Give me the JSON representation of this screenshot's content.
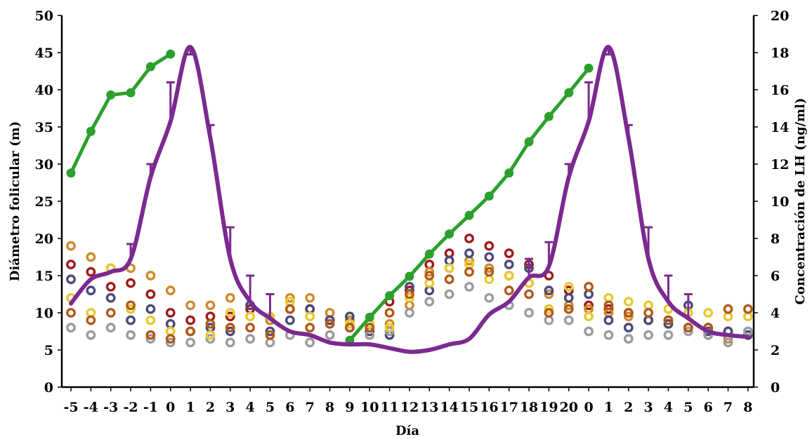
{
  "chart_data": {
    "type": "line",
    "title": "",
    "xlabel": "Día",
    "ylabel": "Diámetro folicular (m)",
    "y2label": "Concentración de LH (ng/ml)",
    "ylim": [
      0,
      50
    ],
    "y2lim": [
      0,
      20
    ],
    "yticks": [
      "0",
      "5",
      "10",
      "15",
      "20",
      "25",
      "30",
      "35",
      "40",
      "45",
      "50"
    ],
    "y2ticks": [
      "0",
      "2",
      "4",
      "6",
      "8",
      "10",
      "12",
      "14",
      "16",
      "18",
      "20"
    ],
    "categories": [
      "-5",
      "-4",
      "-3",
      "-2",
      "-1",
      "0",
      "1",
      "2",
      "3",
      "4",
      "5",
      "6",
      "7",
      "8",
      "9",
      "10",
      "11",
      "12",
      "13",
      "14",
      "15",
      "16",
      "17",
      "18",
      "19",
      "20",
      "0",
      "1",
      "2",
      "3",
      "4",
      "5",
      "6",
      "7",
      "8"
    ],
    "grid": false,
    "legend": "none",
    "colors": {
      "follicle_line": "#2ca02c",
      "lh_line": "#7b2a90",
      "rings": [
        "#a01a1a",
        "#d08a2a",
        "#4a4a7a",
        "#9a9aa0",
        "#e8c830",
        "#b05a1a"
      ]
    },
    "series": [
      {
        "type": "line",
        "axis": "left",
        "color": "#2ca02c",
        "markers": true,
        "segments": [
          [
            [
              0,
              28.8
            ],
            [
              1,
              34.4
            ],
            [
              2,
              39.3
            ],
            [
              3,
              39.6
            ],
            [
              4,
              43.1
            ],
            [
              5,
              44.8
            ]
          ],
          [
            [
              14,
              6.3
            ],
            [
              15,
              9.4
            ],
            [
              16,
              12.3
            ],
            [
              17,
              14.9
            ],
            [
              18,
              17.9
            ],
            [
              19,
              20.6
            ],
            [
              20,
              23.1
            ],
            [
              21,
              25.7
            ],
            [
              22,
              28.8
            ],
            [
              23,
              33.0
            ],
            [
              24,
              36.4
            ],
            [
              25,
              39.6
            ],
            [
              26,
              42.9
            ]
          ]
        ]
      },
      {
        "type": "line",
        "axis": "right",
        "color": "#7b2a90",
        "points": [
          [
            0,
            4.5
          ],
          [
            1,
            5.8
          ],
          [
            2,
            6.2
          ],
          [
            3,
            6.9
          ],
          [
            4,
            11.3
          ],
          [
            5,
            14.3
          ],
          [
            6,
            18.3
          ],
          [
            7,
            13.4
          ],
          [
            8,
            6.9
          ],
          [
            9,
            4.6
          ],
          [
            10,
            3.7
          ],
          [
            11,
            3.0
          ],
          [
            12,
            2.8
          ],
          [
            13,
            2.4
          ],
          [
            14,
            2.3
          ],
          [
            15,
            2.3
          ],
          [
            16,
            2.1
          ],
          [
            17,
            1.9
          ],
          [
            18,
            2.0
          ],
          [
            19,
            2.3
          ],
          [
            20,
            2.6
          ],
          [
            21,
            3.9
          ],
          [
            22,
            4.6
          ],
          [
            23,
            5.9
          ],
          [
            24,
            6.5
          ],
          [
            25,
            11.3
          ],
          [
            26,
            14.3
          ],
          [
            27,
            18.3
          ],
          [
            28,
            13.4
          ],
          [
            29,
            6.9
          ],
          [
            30,
            4.6
          ],
          [
            31,
            3.7
          ],
          [
            32,
            3.0
          ],
          [
            33,
            2.8
          ],
          [
            34,
            2.7
          ]
        ],
        "error_bars": [
          [
            3,
            7.7
          ],
          [
            4,
            12.0
          ],
          [
            5,
            16.4
          ],
          [
            6,
            17.9
          ],
          [
            7,
            14.1
          ],
          [
            8,
            8.6
          ],
          [
            9,
            6.0
          ],
          [
            10,
            5.0
          ],
          [
            23,
            6.9
          ],
          [
            24,
            7.8
          ],
          [
            25,
            12.0
          ],
          [
            26,
            16.4
          ],
          [
            27,
            17.9
          ],
          [
            28,
            14.1
          ],
          [
            29,
            8.6
          ],
          [
            30,
            6.0
          ],
          [
            31,
            5.0
          ]
        ]
      },
      {
        "type": "scatter",
        "axis": "left",
        "marker": "ring",
        "color": "#a01a1a",
        "points": [
          [
            0,
            16.5
          ],
          [
            1,
            15.5
          ],
          [
            2,
            13.5
          ],
          [
            3,
            14.0
          ],
          [
            4,
            12.5
          ],
          [
            5,
            10.0
          ],
          [
            6,
            9.0
          ],
          [
            7,
            9.5
          ],
          [
            8,
            9.5
          ],
          [
            9,
            10.5
          ],
          [
            10,
            9.0
          ],
          [
            11,
            10.5
          ],
          [
            12,
            10.5
          ],
          [
            13,
            9.0
          ],
          [
            14,
            9.0
          ],
          [
            15,
            8.5
          ],
          [
            16,
            11.5
          ],
          [
            17,
            13.0
          ],
          [
            18,
            16.5
          ],
          [
            19,
            18.0
          ],
          [
            20,
            20.0
          ],
          [
            21,
            19.0
          ],
          [
            22,
            18.0
          ],
          [
            23,
            16.5
          ],
          [
            24,
            15.0
          ],
          [
            25,
            13.0
          ],
          [
            26,
            11.0
          ],
          [
            27,
            10.5
          ],
          [
            28,
            10.0
          ],
          [
            29,
            9.0
          ],
          [
            30,
            9.0
          ],
          [
            31,
            8.0
          ],
          [
            32,
            8.0
          ],
          [
            33,
            7.5
          ],
          [
            34,
            7.0
          ]
        ]
      },
      {
        "type": "scatter",
        "axis": "left",
        "marker": "ring",
        "color": "#d08a2a",
        "points": [
          [
            0,
            19.0
          ],
          [
            1,
            17.5
          ],
          [
            2,
            16.0
          ],
          [
            3,
            16.0
          ],
          [
            4,
            15.0
          ],
          [
            5,
            13.0
          ],
          [
            6,
            11.0
          ],
          [
            7,
            11.0
          ],
          [
            8,
            12.0
          ],
          [
            9,
            11.0
          ],
          [
            10,
            9.0
          ],
          [
            11,
            12.0
          ],
          [
            12,
            12.0
          ],
          [
            13,
            10.0
          ],
          [
            14,
            9.0
          ],
          [
            15,
            8.0
          ],
          [
            16,
            8.5
          ],
          [
            17,
            11.0
          ],
          [
            18,
            15.5
          ],
          [
            19,
            16.0
          ],
          [
            20,
            17.0
          ],
          [
            21,
            16.0
          ],
          [
            22,
            15.0
          ],
          [
            23,
            14.0
          ],
          [
            24,
            12.5
          ],
          [
            25,
            11.0
          ],
          [
            26,
            10.5
          ],
          [
            27,
            10.0
          ],
          [
            28,
            9.5
          ],
          [
            29,
            9.0
          ],
          [
            30,
            8.5
          ],
          [
            31,
            8.0
          ],
          [
            32,
            7.0
          ],
          [
            33,
            6.5
          ],
          [
            34,
            7.0
          ]
        ]
      },
      {
        "type": "scatter",
        "axis": "left",
        "marker": "ring",
        "color": "#4a4a7a",
        "points": [
          [
            0,
            14.5
          ],
          [
            1,
            13.0
          ],
          [
            2,
            12.0
          ],
          [
            3,
            9.0
          ],
          [
            4,
            10.5
          ],
          [
            5,
            8.5
          ],
          [
            6,
            7.5
          ],
          [
            7,
            8.0
          ],
          [
            8,
            7.5
          ],
          [
            9,
            11.0
          ],
          [
            10,
            7.5
          ],
          [
            11,
            9.0
          ],
          [
            12,
            10.5
          ],
          [
            13,
            9.0
          ],
          [
            14,
            9.5
          ],
          [
            15,
            7.5
          ],
          [
            16,
            7.0
          ],
          [
            17,
            13.5
          ],
          [
            18,
            13.0
          ],
          [
            19,
            17.0
          ],
          [
            20,
            18.0
          ],
          [
            21,
            17.5
          ],
          [
            22,
            16.5
          ],
          [
            23,
            16.0
          ],
          [
            24,
            13.0
          ],
          [
            25,
            12.0
          ],
          [
            26,
            12.5
          ],
          [
            27,
            9.0
          ],
          [
            28,
            8.0
          ],
          [
            29,
            9.0
          ],
          [
            30,
            8.5
          ],
          [
            31,
            11.0
          ],
          [
            32,
            7.5
          ],
          [
            33,
            7.5
          ],
          [
            34,
            7.0
          ]
        ]
      },
      {
        "type": "scatter",
        "axis": "left",
        "marker": "ring",
        "color": "#9a9aa0",
        "points": [
          [
            0,
            8.0
          ],
          [
            1,
            7.0
          ],
          [
            2,
            8.0
          ],
          [
            3,
            7.0
          ],
          [
            4,
            6.5
          ],
          [
            5,
            6.0
          ],
          [
            6,
            6.0
          ],
          [
            7,
            6.5
          ],
          [
            8,
            6.0
          ],
          [
            9,
            6.5
          ],
          [
            10,
            6.0
          ],
          [
            11,
            7.0
          ],
          [
            12,
            6.0
          ],
          [
            13,
            7.0
          ],
          [
            14,
            8.0
          ],
          [
            15,
            7.0
          ],
          [
            16,
            7.5
          ],
          [
            17,
            10.0
          ],
          [
            18,
            11.5
          ],
          [
            19,
            12.5
          ],
          [
            20,
            13.5
          ],
          [
            21,
            12.0
          ],
          [
            22,
            11.0
          ],
          [
            23,
            10.0
          ],
          [
            24,
            9.0
          ],
          [
            25,
            9.0
          ],
          [
            26,
            7.5
          ],
          [
            27,
            7.0
          ],
          [
            28,
            6.5
          ],
          [
            29,
            7.0
          ],
          [
            30,
            7.0
          ],
          [
            31,
            7.5
          ],
          [
            32,
            7.0
          ],
          [
            33,
            6.0
          ],
          [
            34,
            7.5
          ]
        ]
      },
      {
        "type": "scatter",
        "axis": "left",
        "marker": "ring",
        "color": "#e8c830",
        "points": [
          [
            0,
            12.0
          ],
          [
            1,
            10.0
          ],
          [
            2,
            16.0
          ],
          [
            3,
            10.5
          ],
          [
            4,
            9.0
          ],
          [
            5,
            7.5
          ],
          [
            6,
            7.5
          ],
          [
            7,
            7.0
          ],
          [
            8,
            10.0
          ],
          [
            9,
            9.5
          ],
          [
            10,
            9.5
          ],
          [
            11,
            11.5
          ],
          [
            12,
            9.5
          ],
          [
            13,
            8.5
          ],
          [
            14,
            8.5
          ],
          [
            15,
            8.5
          ],
          [
            16,
            8.0
          ],
          [
            17,
            12.0
          ],
          [
            18,
            14.0
          ],
          [
            19,
            16.0
          ],
          [
            20,
            16.5
          ],
          [
            21,
            14.5
          ],
          [
            22,
            15.0
          ],
          [
            23,
            14.0
          ],
          [
            24,
            10.5
          ],
          [
            25,
            13.5
          ],
          [
            26,
            9.5
          ],
          [
            27,
            12.0
          ],
          [
            28,
            11.5
          ],
          [
            29,
            11.0
          ],
          [
            30,
            10.5
          ],
          [
            31,
            10.0
          ],
          [
            32,
            10.0
          ],
          [
            33,
            9.5
          ],
          [
            34,
            9.5
          ]
        ]
      },
      {
        "type": "scatter",
        "axis": "left",
        "marker": "ring",
        "color": "#b05a1a",
        "points": [
          [
            0,
            10.0
          ],
          [
            1,
            9.0
          ],
          [
            2,
            10.0
          ],
          [
            3,
            11.0
          ],
          [
            4,
            7.0
          ],
          [
            5,
            6.5
          ],
          [
            6,
            7.5
          ],
          [
            7,
            8.5
          ],
          [
            8,
            8.0
          ],
          [
            9,
            8.0
          ],
          [
            10,
            7.0
          ],
          [
            11,
            10.5
          ],
          [
            12,
            8.0
          ],
          [
            13,
            8.5
          ],
          [
            14,
            8.0
          ],
          [
            15,
            8.0
          ],
          [
            16,
            10.0
          ],
          [
            17,
            12.5
          ],
          [
            18,
            15.0
          ],
          [
            19,
            14.5
          ],
          [
            20,
            15.5
          ],
          [
            21,
            15.5
          ],
          [
            22,
            13.0
          ],
          [
            23,
            12.5
          ],
          [
            24,
            10.0
          ],
          [
            25,
            10.5
          ],
          [
            26,
            13.5
          ],
          [
            27,
            11.0
          ],
          [
            28,
            10.0
          ],
          [
            29,
            10.0
          ],
          [
            30,
            9.0
          ],
          [
            31,
            8.0
          ],
          [
            32,
            8.0
          ],
          [
            33,
            10.5
          ],
          [
            34,
            10.5
          ]
        ]
      }
    ]
  }
}
